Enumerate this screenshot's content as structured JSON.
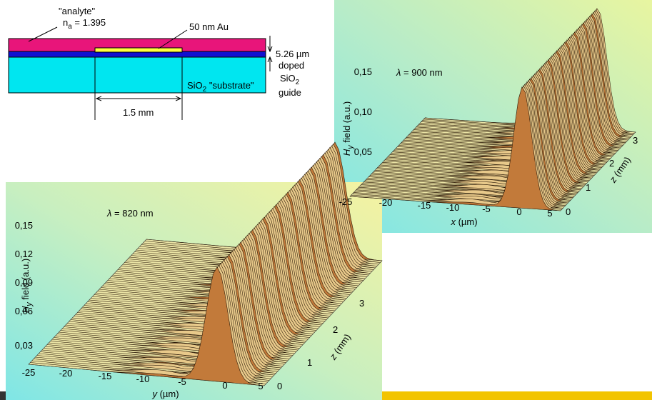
{
  "schematic": {
    "analyte_label": "\"analyte\"",
    "index_symbol": "n",
    "index_sub": "a",
    "index_value": " = 1.395",
    "gold_label": "50 nm Au",
    "thickness_label": "5.26 µm",
    "guide_label_1": "doped",
    "guide_label_2": "SiO",
    "guide_label_2_sub": "2",
    "guide_label_3": "guide",
    "substrate_label": "SiO",
    "substrate_sub": "2",
    "substrate_rest": " \"substrate\"",
    "length_label": "1.5 mm"
  },
  "plot_900": {
    "wavelength_symbol": "λ",
    "wavelength_value": " = 900 nm",
    "y_label": "H",
    "y_label_sub": "y",
    "y_label_rest": " field (a.u.)",
    "y_ticks": [
      "0,15",
      "0,10",
      "0,05"
    ],
    "x_label": "x",
    "x_label_unit": " (µm)",
    "x_ticks": [
      "-25",
      "-20",
      "-15",
      "-10",
      "-5",
      "0",
      "5"
    ],
    "z_label": "z",
    "z_label_unit": " (mm)",
    "z_ticks": [
      "0",
      "1",
      "2",
      "3"
    ]
  },
  "plot_820": {
    "wavelength_symbol": "λ",
    "wavelength_value": " = 820 nm",
    "y_label": "H",
    "y_label_sub": "y",
    "y_label_rest": " field (a.u.)",
    "y_ticks": [
      "0,15",
      "0,12",
      "0,09",
      "0,06",
      "0,03"
    ],
    "x_label": "y",
    "x_label_unit": " (µm)",
    "x_ticks": [
      "-25",
      "-20",
      "-15",
      "-10",
      "-5",
      "0",
      "5"
    ],
    "z_label": "z",
    "z_label_unit": " (mm)",
    "z_ticks": [
      "0",
      "1",
      "2",
      "3"
    ]
  }
}
